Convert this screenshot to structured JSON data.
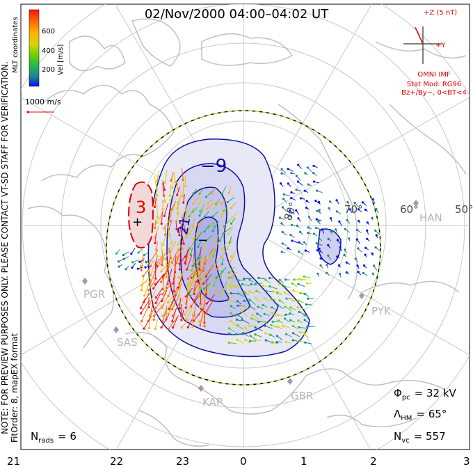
{
  "title": "02/Nov/2000 04:00–04:02 UT",
  "coordinates_label": "MLT coordinates",
  "velocity_scale": {
    "label": "Vel [m/s]",
    "ticks": [
      "600",
      "400",
      "200"
    ],
    "colors": [
      "#ff1010",
      "#ff6a00",
      "#ffb000",
      "#d6d600",
      "#66d000",
      "#20b060",
      "#208090",
      "#0010ff"
    ],
    "vector_reference": "1000 m/s"
  },
  "imf": {
    "z_label": "+Z (5 nT)",
    "y_label": "+Y",
    "source": "OMNI IMF",
    "model": "Stat Mod: RG96",
    "condition": "Bz+/By−, 0<BT<4",
    "clock_angle_deg": -25
  },
  "contours": {
    "potential_labels": [
      "−9",
      "−21",
      "3"
    ],
    "sign_markers": [
      "+",
      "−"
    ],
    "dusk_cell_color": "#1010a0",
    "dawn_cell_color": "#e00000"
  },
  "latitude_labels": [
    "80°",
    "70°",
    "60°",
    "50°"
  ],
  "sites": [
    "PGR",
    "SAS",
    "KAP",
    "GBR",
    "PYK",
    "HAN"
  ],
  "mlt_ticks": [
    "21",
    "22",
    "23",
    "0",
    "1",
    "2",
    "3"
  ],
  "stats": {
    "phi_symbol": "Φ",
    "phi_sub": "pc",
    "phi_value": "= 32 kV",
    "lambda_symbol": "Λ",
    "lambda_sub": "HM",
    "lambda_value": "= 65°",
    "nvc_symbol": "N",
    "nvc_sub": "vc",
    "nvc_value": "= 557",
    "nrads_symbol": "N",
    "nrads_sub": "rads",
    "nrads_value": "= 6"
  },
  "notes": {
    "line1": "NOTE: FOR PREVIEW PURPOSES ONLY. PLEASE CONTACT VT-SD STAFF FOR VERIFICATION.",
    "line2": "FitOrder: 8, mapEX format"
  }
}
